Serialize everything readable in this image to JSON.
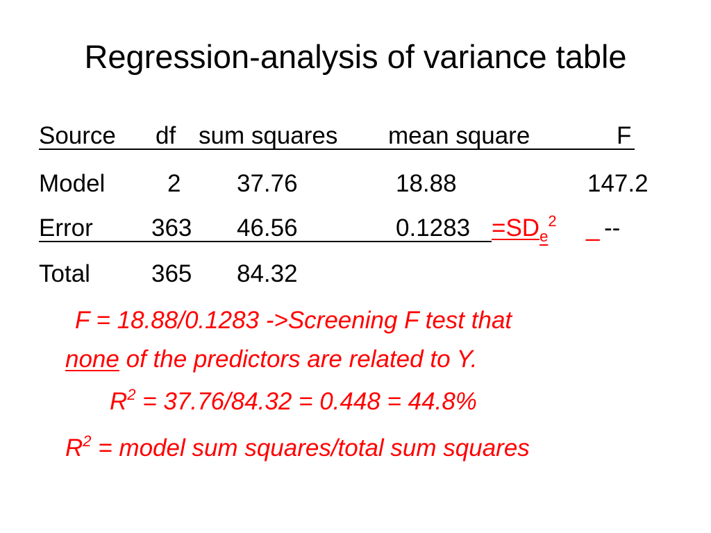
{
  "title": "Regression-analysis of variance table",
  "table": {
    "header": {
      "source": "Source",
      "df": "df",
      "ss": "sum squares",
      "ms": "mean square",
      "f": "F"
    },
    "rows": [
      {
        "source": "Model",
        "df": "2",
        "ss": "37.76",
        "ms": "18.88",
        "f": "147.2"
      },
      {
        "source": "Error",
        "df": "363",
        "ss": "46.56",
        "ms": "0.1283",
        "f": "--"
      },
      {
        "source": "Total",
        "df": "365",
        "ss": "84.32",
        "ms": "",
        "f": ""
      }
    ],
    "error_annotation": {
      "prefix": "=SD",
      "subscript": "e",
      "superscript": "2",
      "trailing": "_"
    }
  },
  "notes": {
    "f_line1": "F = 18.88/0.1283 ->Screening F test that",
    "f_line2_underlined": "none",
    "f_line2_rest": " of the predictors are related to Y.",
    "r2_calc_prefix": "R",
    "r2_calc_sup": "2",
    "r2_calc_rest": " = 37.76/84.32 = 0.448 = 44.8%",
    "r2_def_prefix": "R",
    "r2_def_sup": "2",
    "r2_def_rest": " = model sum squares/total sum squares"
  },
  "colors": {
    "text": "#000000",
    "accent": "#ff0000",
    "background": "#ffffff"
  }
}
